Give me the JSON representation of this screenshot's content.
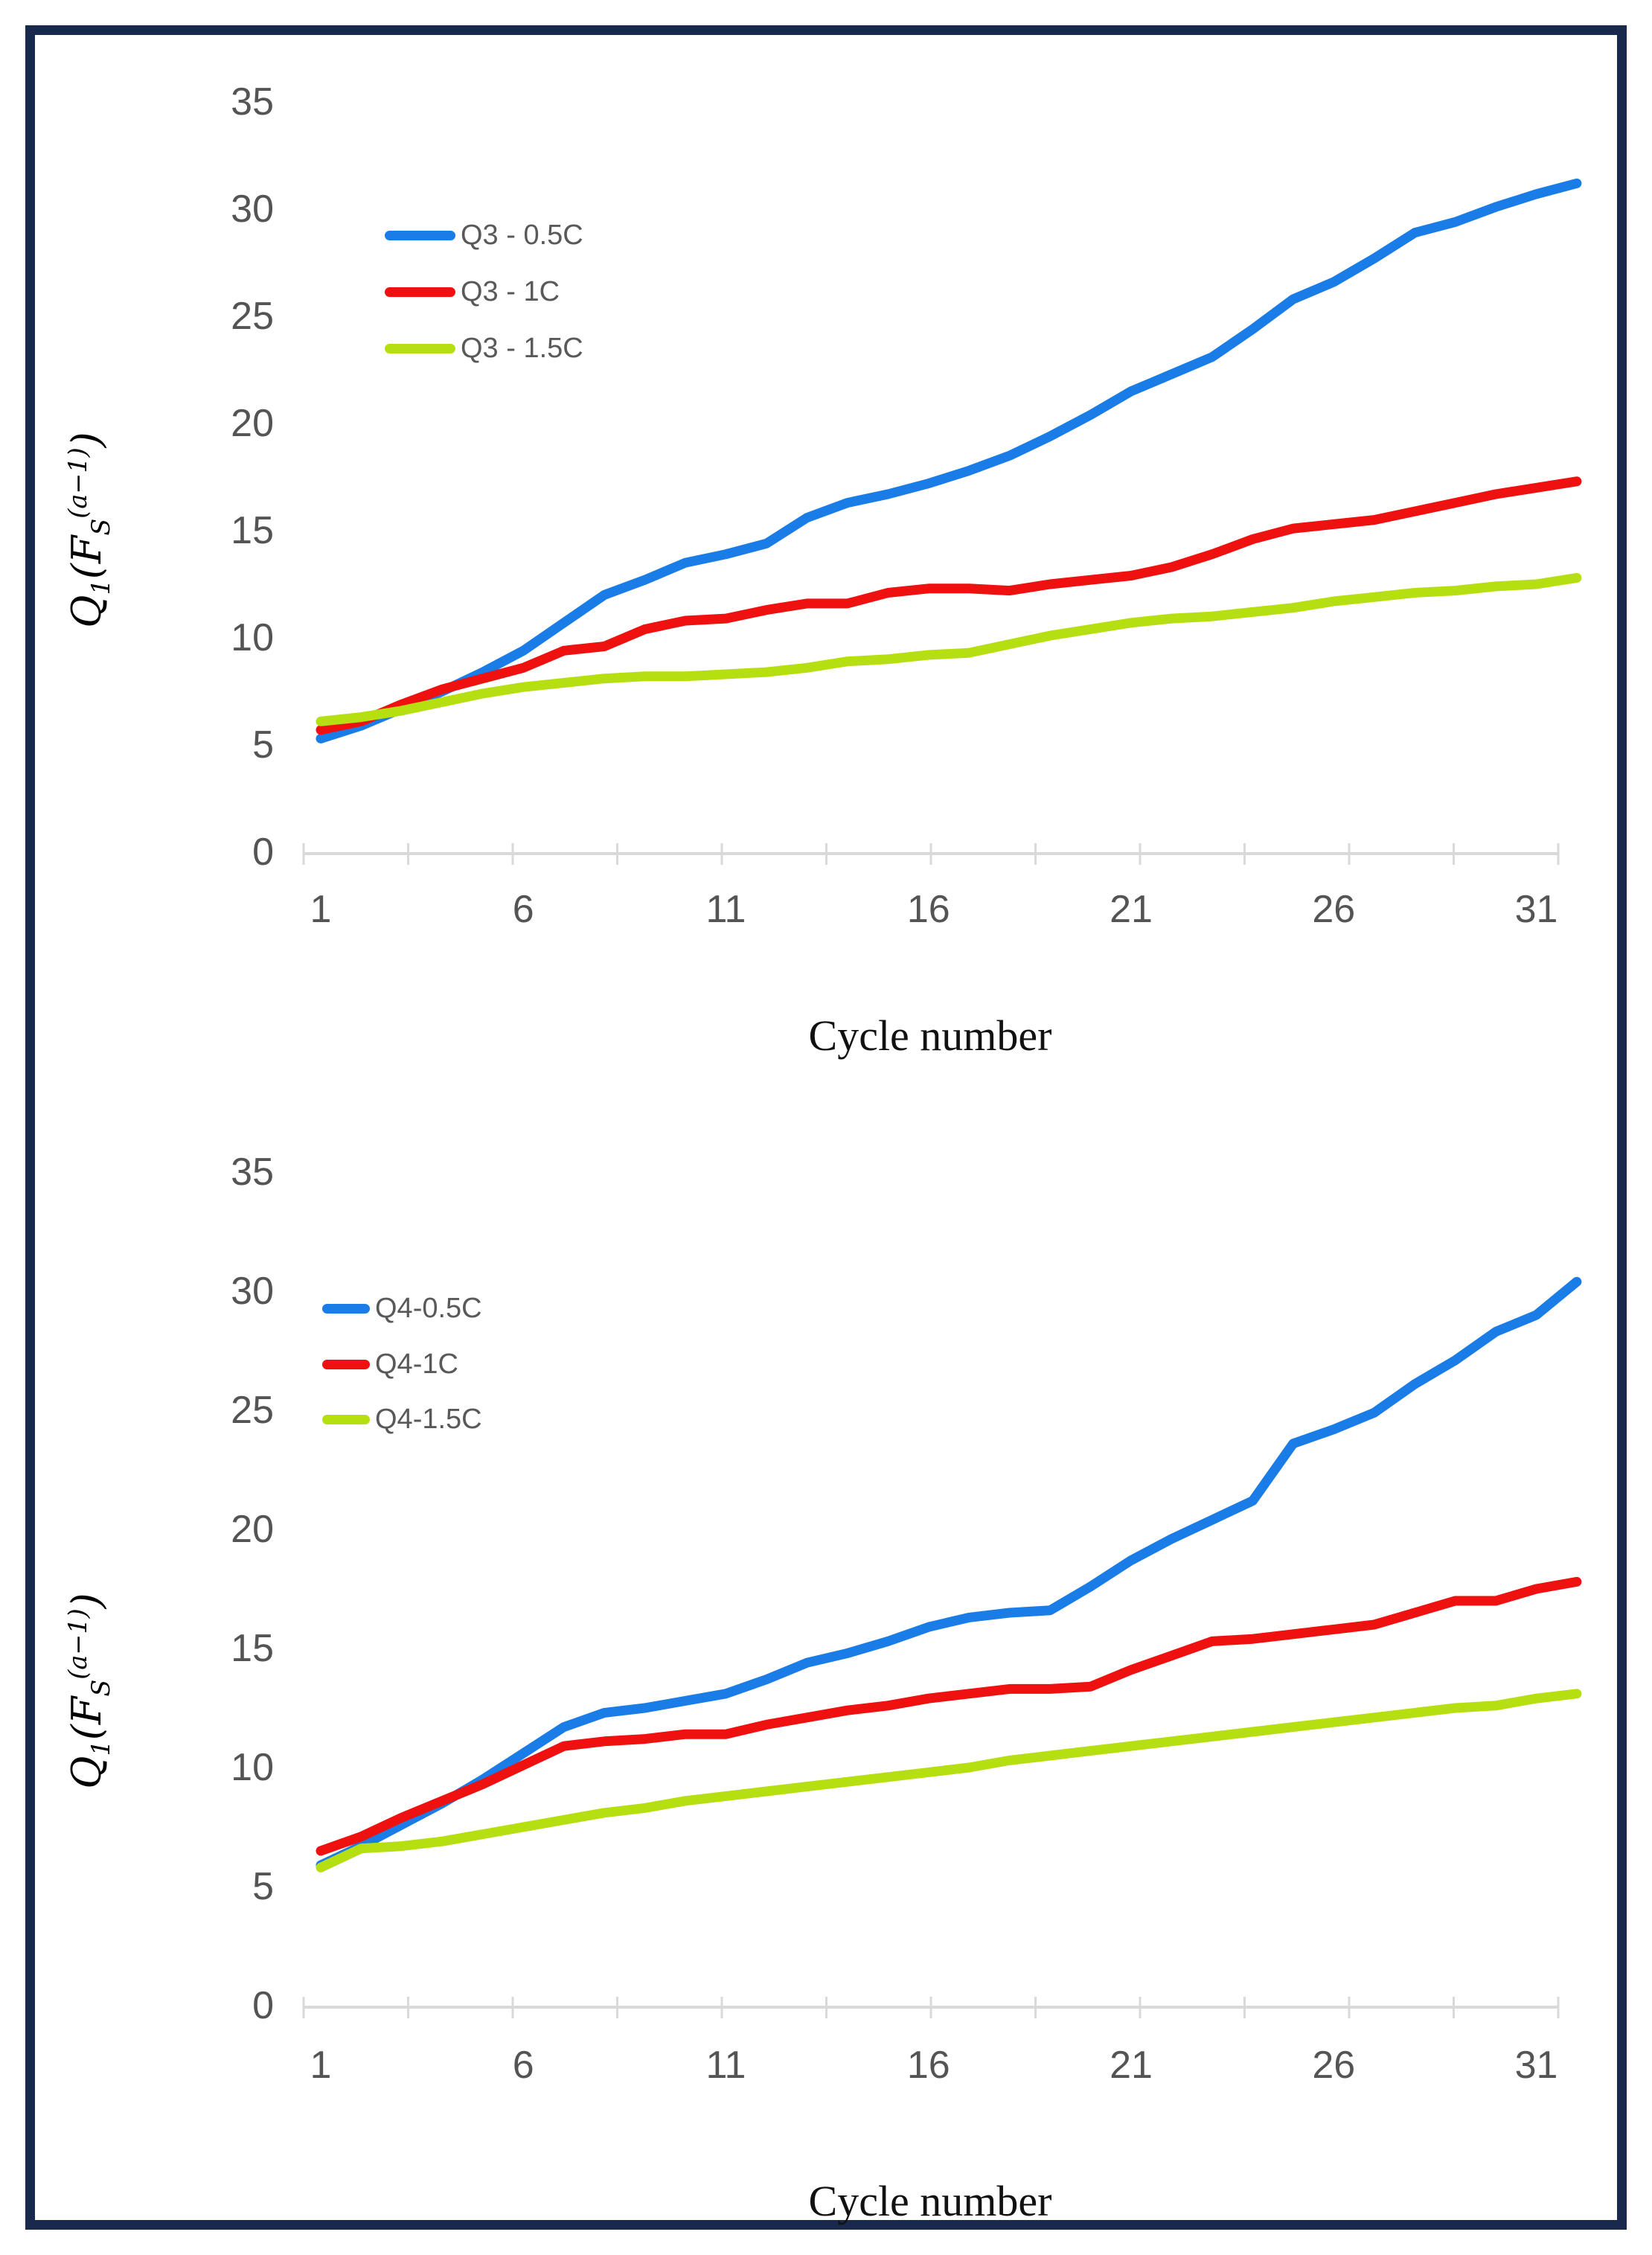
{
  "page": {
    "border_color": "#18294d",
    "background": "#ffffff"
  },
  "chart_data": [
    {
      "type": "line",
      "title": "",
      "xlabel": "Cycle number",
      "ylabel": "Q1(FS(a-1))",
      "ylim": [
        0,
        35
      ],
      "yticks": [
        35,
        30,
        25,
        20,
        15,
        10,
        5,
        0
      ],
      "xticks": [
        1,
        6,
        11,
        16,
        21,
        26,
        31
      ],
      "x": [
        1,
        2,
        3,
        4,
        5,
        6,
        7,
        8,
        9,
        10,
        11,
        12,
        13,
        14,
        15,
        16,
        17,
        18,
        19,
        20,
        21,
        22,
        23,
        24,
        25,
        26,
        27,
        28,
        29,
        30,
        31,
        32
      ],
      "grid": false,
      "legend_position": "inside upper-left",
      "series": [
        {
          "name": "Q3 - 0.5C",
          "color": "#1a7ce6",
          "values": [
            5.3,
            5.9,
            6.7,
            7.5,
            8.4,
            9.4,
            10.7,
            12.0,
            12.7,
            13.5,
            13.9,
            14.4,
            15.6,
            16.3,
            16.7,
            17.2,
            17.8,
            18.5,
            19.4,
            20.4,
            21.5,
            22.3,
            23.1,
            24.4,
            25.8,
            26.6,
            27.7,
            28.9,
            29.4,
            30.1,
            30.7,
            31.2
          ]
        },
        {
          "name": "Q3 - 1C",
          "color": "#ef1010",
          "values": [
            5.7,
            6.1,
            6.9,
            7.6,
            8.1,
            8.6,
            9.4,
            9.6,
            10.4,
            10.8,
            10.9,
            11.3,
            11.6,
            11.6,
            12.1,
            12.3,
            12.3,
            12.2,
            12.5,
            12.7,
            12.9,
            13.3,
            13.9,
            14.6,
            15.1,
            15.3,
            15.5,
            15.9,
            16.3,
            16.7,
            17.0,
            17.3
          ]
        },
        {
          "name": "Q3 - 1.5C",
          "color": "#b6df12",
          "values": [
            6.1,
            6.3,
            6.6,
            7.0,
            7.4,
            7.7,
            7.9,
            8.1,
            8.2,
            8.2,
            8.3,
            8.4,
            8.6,
            8.9,
            9.0,
            9.2,
            9.3,
            9.7,
            10.1,
            10.4,
            10.7,
            10.9,
            11.0,
            11.2,
            11.4,
            11.7,
            11.9,
            12.1,
            12.2,
            12.4,
            12.5,
            12.8
          ]
        }
      ]
    },
    {
      "type": "line",
      "title": "",
      "xlabel": "Cycle number",
      "ylabel": "Q1(FS(a-1))",
      "ylim": [
        0,
        35
      ],
      "yticks": [
        35,
        30,
        25,
        20,
        15,
        10,
        5,
        0
      ],
      "xticks": [
        1,
        6,
        11,
        16,
        21,
        26,
        31
      ],
      "x": [
        1,
        2,
        3,
        4,
        5,
        6,
        7,
        8,
        9,
        10,
        11,
        12,
        13,
        14,
        15,
        16,
        17,
        18,
        19,
        20,
        21,
        22,
        23,
        24,
        25,
        26,
        27,
        28,
        29,
        30,
        31,
        32
      ],
      "grid": false,
      "legend_position": "inside upper-left",
      "series": [
        {
          "name": "Q4-0.5C",
          "color": "#1a7ce6",
          "values": [
            5.9,
            6.7,
            7.6,
            8.5,
            9.5,
            10.6,
            11.7,
            12.3,
            12.5,
            12.8,
            13.1,
            13.7,
            14.4,
            14.8,
            15.3,
            15.9,
            16.3,
            16.5,
            16.6,
            17.6,
            18.7,
            19.6,
            20.4,
            21.2,
            23.6,
            24.2,
            24.9,
            26.1,
            27.1,
            28.3,
            29.0,
            30.4
          ]
        },
        {
          "name": "Q4-1C",
          "color": "#ef1010",
          "values": [
            6.5,
            7.1,
            7.9,
            8.6,
            9.3,
            10.1,
            10.9,
            11.1,
            11.2,
            11.4,
            11.4,
            11.8,
            12.1,
            12.4,
            12.6,
            12.9,
            13.1,
            13.3,
            13.3,
            13.4,
            14.1,
            14.7,
            15.3,
            15.4,
            15.6,
            15.8,
            16.0,
            16.5,
            17.0,
            17.0,
            17.5,
            17.8
          ]
        },
        {
          "name": "Q4-1.5C",
          "color": "#b6df12",
          "values": [
            5.8,
            6.6,
            6.7,
            6.9,
            7.2,
            7.5,
            7.8,
            8.1,
            8.3,
            8.6,
            8.8,
            9.0,
            9.2,
            9.4,
            9.6,
            9.8,
            10.0,
            10.3,
            10.5,
            10.7,
            10.9,
            11.1,
            11.3,
            11.5,
            11.7,
            11.9,
            12.1,
            12.3,
            12.5,
            12.6,
            12.9,
            13.1
          ]
        }
      ]
    }
  ],
  "y_axis_title": {
    "q": "Q",
    "sub1": "1",
    "open": "(",
    "f": "F",
    "subs": "S",
    "sup": "(a−1)",
    "close": ")"
  }
}
